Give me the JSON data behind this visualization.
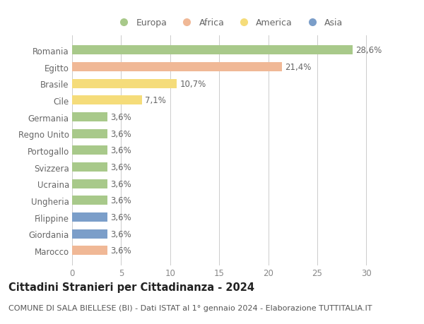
{
  "categories": [
    "Romania",
    "Egitto",
    "Brasile",
    "Cile",
    "Germania",
    "Regno Unito",
    "Portogallo",
    "Svizzera",
    "Ucraina",
    "Ungheria",
    "Filippine",
    "Giordania",
    "Marocco"
  ],
  "values": [
    28.6,
    21.4,
    10.7,
    7.1,
    3.6,
    3.6,
    3.6,
    3.6,
    3.6,
    3.6,
    3.6,
    3.6,
    3.6
  ],
  "labels": [
    "28,6%",
    "21,4%",
    "10,7%",
    "7,1%",
    "3,6%",
    "3,6%",
    "3,6%",
    "3,6%",
    "3,6%",
    "3,6%",
    "3,6%",
    "3,6%",
    "3,6%"
  ],
  "continents": [
    "Europa",
    "Africa",
    "America",
    "America",
    "Europa",
    "Europa",
    "Europa",
    "Europa",
    "Europa",
    "Europa",
    "Asia",
    "Asia",
    "Africa"
  ],
  "colors": {
    "Europa": "#a8c98a",
    "Africa": "#f0b896",
    "America": "#f5dc7a",
    "Asia": "#7b9ec9"
  },
  "legend_order": [
    "Europa",
    "Africa",
    "America",
    "Asia"
  ],
  "xlim": [
    0,
    32
  ],
  "xticks": [
    0,
    5,
    10,
    15,
    20,
    25,
    30
  ],
  "title": "Cittadini Stranieri per Cittadinanza - 2024",
  "subtitle": "COMUNE DI SALA BIELLESE (BI) - Dati ISTAT al 1° gennaio 2024 - Elaborazione TUTTITALIA.IT",
  "background_color": "#ffffff",
  "grid_color": "#cccccc",
  "bar_height": 0.55,
  "label_fontsize": 8.5,
  "title_fontsize": 10.5,
  "subtitle_fontsize": 8,
  "ytick_fontsize": 8.5,
  "xtick_fontsize": 8.5
}
